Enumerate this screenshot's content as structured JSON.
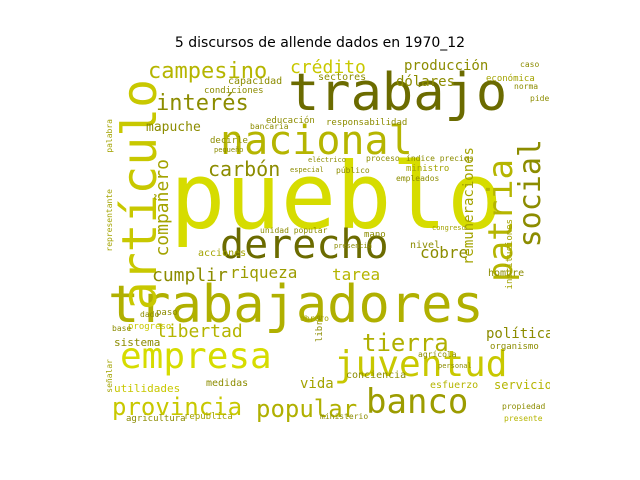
{
  "figure": {
    "title": "5 discursos de allende dados en 1970_12"
  },
  "colors": {
    "dark": "#6b6b00",
    "mid": "#a3a300",
    "light": "#c8c800",
    "bright": "#d6dc00",
    "background": "#ffffff"
  },
  "words": [
    {
      "text": "pueblo",
      "size": 92,
      "color": "#d6dc00",
      "orient": "h"
    },
    {
      "text": "trabajadores",
      "size": 52,
      "color": "#b0b000",
      "orient": "h"
    },
    {
      "text": "trabajo",
      "size": 52,
      "color": "#6b6b00",
      "orient": "h"
    },
    {
      "text": "artículo",
      "size": 48,
      "color": "#c8c800",
      "orient": "v"
    },
    {
      "text": "nacional",
      "size": 40,
      "color": "#b5b500",
      "orient": "h"
    },
    {
      "text": "derecho",
      "size": 40,
      "color": "#6b6b00",
      "orient": "h"
    },
    {
      "text": "empresa",
      "size": 36,
      "color": "#d6dc00",
      "orient": "h"
    },
    {
      "text": "juventud",
      "size": 36,
      "color": "#c8c800",
      "orient": "h"
    },
    {
      "text": "banco",
      "size": 34,
      "color": "#9c9c00",
      "orient": "h"
    },
    {
      "text": "patria",
      "size": 34,
      "color": "#b5b500",
      "orient": "v"
    },
    {
      "text": "social",
      "size": 30,
      "color": "#8c8c00",
      "orient": "v"
    },
    {
      "text": "provincia",
      "size": 24,
      "color": "#c8c800",
      "orient": "h"
    },
    {
      "text": "popular",
      "size": 24,
      "color": "#b0b000",
      "orient": "h"
    },
    {
      "text": "tierra",
      "size": 24,
      "color": "#b0b000",
      "orient": "h"
    },
    {
      "text": "campesino",
      "size": 22,
      "color": "#b5b500",
      "orient": "h"
    },
    {
      "text": "interés",
      "size": 22,
      "color": "#8c8c00",
      "orient": "h"
    },
    {
      "text": "carbón",
      "size": 20,
      "color": "#8c8c00",
      "orient": "h"
    },
    {
      "text": "compañero",
      "size": 18,
      "color": "#a3a300",
      "orient": "v"
    },
    {
      "text": "crédito",
      "size": 18,
      "color": "#c8c800",
      "orient": "h"
    },
    {
      "text": "cumplir",
      "size": 18,
      "color": "#8c8c00",
      "orient": "h"
    },
    {
      "text": "libertad",
      "size": 18,
      "color": "#b5b500",
      "orient": "h"
    },
    {
      "text": "riqueza",
      "size": 16,
      "color": "#9c9c00",
      "orient": "h"
    },
    {
      "text": "cobre",
      "size": 16,
      "color": "#8c8c00",
      "orient": "h"
    },
    {
      "text": "remuneraciones",
      "size": 14,
      "color": "#a3a300",
      "orient": "v"
    },
    {
      "text": "tarea",
      "size": 16,
      "color": "#b5b500",
      "orient": "h"
    },
    {
      "text": "política",
      "size": 14,
      "color": "#8c8c00",
      "orient": "h"
    },
    {
      "text": "vida",
      "size": 14,
      "color": "#a3a300",
      "orient": "h"
    },
    {
      "text": "dólares",
      "size": 14,
      "color": "#8c8c00",
      "orient": "h"
    },
    {
      "text": "producción",
      "size": 14,
      "color": "#8c8c00",
      "orient": "h"
    },
    {
      "text": "mapuche",
      "size": 13,
      "color": "#8c8c00",
      "orient": "h"
    },
    {
      "text": "servicio",
      "size": 12,
      "color": "#b5b500",
      "orient": "h"
    },
    {
      "text": "sistema",
      "size": 11,
      "color": "#8c8c00",
      "orient": "h"
    },
    {
      "text": "acciones",
      "size": 10,
      "color": "#a3a300",
      "orient": "h"
    },
    {
      "text": "utilidades",
      "size": 11,
      "color": "#c8c800",
      "orient": "h"
    },
    {
      "text": "medidas",
      "size": 10,
      "color": "#8c8c00",
      "orient": "h"
    },
    {
      "text": "república",
      "size": 9,
      "color": "#a3a300",
      "orient": "h"
    },
    {
      "text": "agricultura",
      "size": 9,
      "color": "#8c8c00",
      "orient": "h"
    },
    {
      "text": "conciencia",
      "size": 10,
      "color": "#8c8c00",
      "orient": "h"
    },
    {
      "text": "esfuerzo",
      "size": 10,
      "color": "#b5b500",
      "orient": "h"
    },
    {
      "text": "organismo",
      "size": 9,
      "color": "#8c8c00",
      "orient": "h"
    },
    {
      "text": "hombre",
      "size": 10,
      "color": "#8c8c00",
      "orient": "h"
    },
    {
      "text": "progreso",
      "size": 9,
      "color": "#c8c800",
      "orient": "h"
    },
    {
      "text": "sectores",
      "size": 10,
      "color": "#8c8c00",
      "orient": "h"
    },
    {
      "text": "capacidad",
      "size": 10,
      "color": "#8c8c00",
      "orient": "h"
    },
    {
      "text": "condiciones",
      "size": 9,
      "color": "#8c8c00",
      "orient": "h"
    },
    {
      "text": "educación",
      "size": 9,
      "color": "#8c8c00",
      "orient": "h"
    },
    {
      "text": "responsabilidad",
      "size": 9,
      "color": "#8c8c00",
      "orient": "h"
    },
    {
      "text": "decirle",
      "size": 9,
      "color": "#8c8c00",
      "orient": "h"
    },
    {
      "text": "proceso",
      "size": 8,
      "color": "#8c8c00",
      "orient": "h"
    },
    {
      "text": "ministro",
      "size": 9,
      "color": "#a3a300",
      "orient": "h"
    },
    {
      "text": "público",
      "size": 8,
      "color": "#8c8c00",
      "orient": "h"
    },
    {
      "text": "empleados",
      "size": 8,
      "color": "#8c8c00",
      "orient": "h"
    },
    {
      "text": "mano",
      "size": 9,
      "color": "#8c8c00",
      "orient": "h"
    },
    {
      "text": "unidad popular",
      "size": 8,
      "color": "#8c8c00",
      "orient": "h"
    },
    {
      "text": "nivel",
      "size": 10,
      "color": "#8c8c00",
      "orient": "h"
    },
    {
      "text": "económica",
      "size": 9,
      "color": "#a3a300",
      "orient": "h"
    },
    {
      "text": "norma",
      "size": 8,
      "color": "#8c8c00",
      "orient": "h"
    },
    {
      "text": "caso",
      "size": 8,
      "color": "#8c8c00",
      "orient": "h"
    },
    {
      "text": "pide",
      "size": 8,
      "color": "#8c8c00",
      "orient": "h"
    },
    {
      "text": "instituciones",
      "size": 9,
      "color": "#a3a300",
      "orient": "v"
    },
    {
      "text": "representante",
      "size": 8,
      "color": "#a3a300",
      "orient": "v"
    },
    {
      "text": "palabra",
      "size": 8,
      "color": "#a3a300",
      "orient": "v"
    },
    {
      "text": "señalar",
      "size": 8,
      "color": "#a3a300",
      "orient": "v"
    },
    {
      "text": "libre",
      "size": 9,
      "color": "#8c8c00",
      "orient": "v"
    },
    {
      "text": "agrícola",
      "size": 8,
      "color": "#8c8c00",
      "orient": "h"
    },
    {
      "text": "presente",
      "size": 8,
      "color": "#b5b500",
      "orient": "h"
    },
    {
      "text": "propiedad",
      "size": 8,
      "color": "#8c8c00",
      "orient": "h"
    },
    {
      "text": "índice precios",
      "size": 8,
      "color": "#8c8c00",
      "orient": "h"
    },
    {
      "text": "ministerio",
      "size": 8,
      "color": "#8c8c00",
      "orient": "h"
    },
    {
      "text": "obrero",
      "size": 8,
      "color": "#a3a300",
      "orient": "h"
    },
    {
      "text": "dado",
      "size": 8,
      "color": "#8c8c00",
      "orient": "h"
    },
    {
      "text": "base",
      "size": 8,
      "color": "#8c8c00",
      "orient": "h"
    },
    {
      "text": "paso",
      "size": 9,
      "color": "#8c8c00",
      "orient": "h"
    },
    {
      "text": "especial",
      "size": 7,
      "color": "#8c8c00",
      "orient": "h"
    },
    {
      "text": "congreso",
      "size": 7,
      "color": "#a3a300",
      "orient": "h"
    },
    {
      "text": "personal",
      "size": 7,
      "color": "#8c8c00",
      "orient": "h"
    },
    {
      "text": "bancaria",
      "size": 8,
      "color": "#8c8c00",
      "orient": "h"
    },
    {
      "text": "pequeño",
      "size": 7,
      "color": "#8c8c00",
      "orient": "h"
    },
    {
      "text": "eléctrico",
      "size": 7,
      "color": "#8c8c00",
      "orient": "h"
    },
    {
      "text": "presencia",
      "size": 7,
      "color": "#8c8c00",
      "orient": "h"
    }
  ]
}
